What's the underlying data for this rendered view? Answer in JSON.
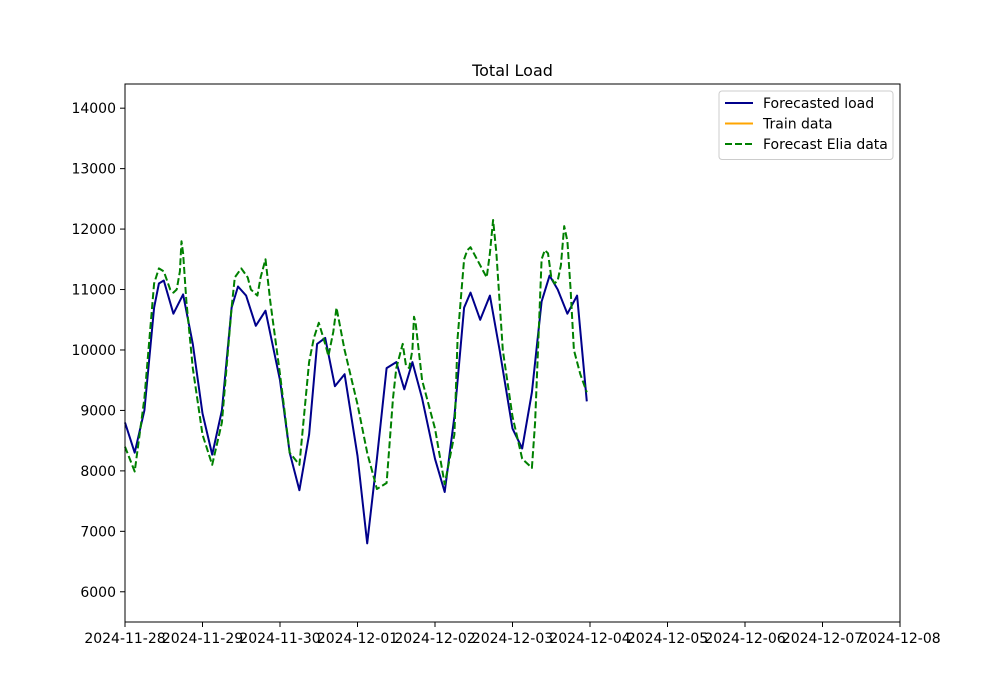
{
  "chart_data": {
    "type": "line",
    "title": "Total Load",
    "xlabel": "",
    "ylabel": "",
    "xlim": [
      "2024-11-28",
      "2024-12-08"
    ],
    "ylim": [
      5500,
      14400
    ],
    "x_ticks": [
      "2024-11-28",
      "2024-11-29",
      "2024-11-30",
      "2024-12-01",
      "2024-12-02",
      "2024-12-03",
      "2024-12-04",
      "2024-12-05",
      "2024-12-06",
      "2024-12-07",
      "2024-12-08"
    ],
    "y_ticks": [
      6000,
      7000,
      8000,
      9000,
      10000,
      11000,
      12000,
      13000,
      14000
    ],
    "grid": false,
    "legend_position": "top-right",
    "series": [
      {
        "name": "Forecasted load",
        "color": "#00008b",
        "style": "solid",
        "x": [
          "2024-11-28 00:00",
          "2024-11-28 03:00",
          "2024-11-28 06:00",
          "2024-11-28 09:00",
          "2024-11-28 10:30",
          "2024-11-28 12:00",
          "2024-11-28 15:00",
          "2024-11-28 18:00",
          "2024-11-28 21:00",
          "2024-11-29 00:00",
          "2024-11-29 03:00",
          "2024-11-29 06:00",
          "2024-11-29 09:00",
          "2024-11-29 11:00",
          "2024-11-29 13:30",
          "2024-11-29 16:30",
          "2024-11-29 19:30",
          "2024-11-30 00:00",
          "2024-11-30 03:00",
          "2024-11-30 06:00",
          "2024-11-30 09:00",
          "2024-11-30 11:30",
          "2024-11-30 14:00",
          "2024-11-30 17:00",
          "2024-11-30 20:00",
          "2024-12-01 00:00",
          "2024-12-01 03:00",
          "2024-12-01 06:00",
          "2024-12-01 09:00",
          "2024-12-01 12:00",
          "2024-12-01 14:30",
          "2024-12-01 17:00",
          "2024-12-01 20:00",
          "2024-12-02 00:00",
          "2024-12-02 03:00",
          "2024-12-02 06:00",
          "2024-12-02 09:00",
          "2024-12-02 11:00",
          "2024-12-02 14:00",
          "2024-12-02 17:00",
          "2024-12-02 20:00",
          "2024-12-03 00:00",
          "2024-12-03 03:00",
          "2024-12-03 06:00",
          "2024-12-03 09:00",
          "2024-12-03 11:30",
          "2024-12-03 14:00",
          "2024-12-03 17:00",
          "2024-12-03 20:00",
          "2024-12-03 23:00"
        ],
        "y": [
          8800,
          8300,
          9000,
          10700,
          11100,
          11150,
          10600,
          10920,
          10100,
          8950,
          8270,
          9000,
          10700,
          11050,
          10900,
          10400,
          10650,
          9500,
          8300,
          7680,
          8600,
          10100,
          10200,
          9400,
          9600,
          8250,
          6800,
          8200,
          9700,
          9800,
          9350,
          9800,
          9200,
          8200,
          7650,
          8900,
          10700,
          10950,
          10500,
          10900,
          10000,
          8700,
          8370,
          9300,
          10800,
          11230,
          11000,
          10600,
          10900,
          9150
        ]
      },
      {
        "name": "Train data",
        "color": "#ffa500",
        "style": "solid",
        "x": [],
        "y": []
      },
      {
        "name": "Forecast Elia data",
        "color": "#008000",
        "style": "dashed",
        "x": [
          "2024-11-28 00:00",
          "2024-11-28 03:00",
          "2024-11-28 06:00",
          "2024-11-28 09:00",
          "2024-11-28 10:30",
          "2024-11-28 12:00",
          "2024-11-28 14:00",
          "2024-11-28 15:00",
          "2024-11-28 16:00",
          "2024-11-28 17:00",
          "2024-11-28 17:30",
          "2024-11-28 18:00",
          "2024-11-28 19:00",
          "2024-11-28 21:00",
          "2024-11-29 00:00",
          "2024-11-29 03:00",
          "2024-11-29 06:00",
          "2024-11-29 09:00",
          "2024-11-29 10:00",
          "2024-11-29 12:00",
          "2024-11-29 14:00",
          "2024-11-29 15:00",
          "2024-11-29 17:00",
          "2024-11-29 18:00",
          "2024-11-29 19:30",
          "2024-11-29 21:00",
          "2024-11-30 00:00",
          "2024-11-30 03:00",
          "2024-11-30 06:00",
          "2024-11-30 09:00",
          "2024-11-30 10:30",
          "2024-11-30 12:00",
          "2024-11-30 14:00",
          "2024-11-30 15:00",
          "2024-11-30 16:30",
          "2024-11-30 17:30",
          "2024-11-30 20:00",
          "2024-12-01 00:00",
          "2024-12-01 03:00",
          "2024-12-01 06:00",
          "2024-12-01 09:00",
          "2024-12-01 11:00",
          "2024-12-01 12:00",
          "2024-12-01 14:00",
          "2024-12-01 15:00",
          "2024-12-01 16:00",
          "2024-12-01 17:00",
          "2024-12-01 17:30",
          "2024-12-01 18:00",
          "2024-12-01 20:00",
          "2024-12-02 00:00",
          "2024-12-02 03:00",
          "2024-12-02 06:00",
          "2024-12-02 07:00",
          "2024-12-02 09:00",
          "2024-12-02 10:00",
          "2024-12-02 11:00",
          "2024-12-02 12:00",
          "2024-12-02 14:00",
          "2024-12-02 15:00",
          "2024-12-02 16:00",
          "2024-12-02 17:00",
          "2024-12-02 18:00",
          "2024-12-02 19:00",
          "2024-12-02 21:00",
          "2024-12-03 00:00",
          "2024-12-03 03:00",
          "2024-12-03 06:00",
          "2024-12-03 07:00",
          "2024-12-03 09:00",
          "2024-12-03 10:00",
          "2024-12-03 11:00",
          "2024-12-03 12:00",
          "2024-12-03 13:00",
          "2024-12-03 14:00",
          "2024-12-03 15:00",
          "2024-12-03 16:00",
          "2024-12-03 17:00",
          "2024-12-03 18:00",
          "2024-12-03 19:00",
          "2024-12-03 21:00",
          "2024-12-03 23:00"
        ],
        "y": [
          8400,
          7990,
          9200,
          11100,
          11350,
          11300,
          11000,
          10950,
          11000,
          11300,
          11800,
          11600,
          10800,
          9700,
          8600,
          8100,
          8800,
          10700,
          11200,
          11350,
          11200,
          11000,
          10900,
          11200,
          11500,
          10800,
          9600,
          8300,
          8100,
          9800,
          10200,
          10450,
          10100,
          9900,
          10300,
          10700,
          10000,
          9100,
          8300,
          7700,
          7800,
          9200,
          9700,
          10100,
          9750,
          9700,
          10000,
          10550,
          10450,
          9500,
          8700,
          7780,
          8600,
          10200,
          11500,
          11650,
          11700,
          11600,
          11400,
          11300,
          11200,
          11600,
          12150,
          11600,
          10000,
          8900,
          8200,
          8050,
          8800,
          11500,
          11650,
          11600,
          11200,
          11100,
          11150,
          11400,
          12050,
          11800,
          11000,
          10000,
          9600,
          9300
        ]
      }
    ]
  }
}
